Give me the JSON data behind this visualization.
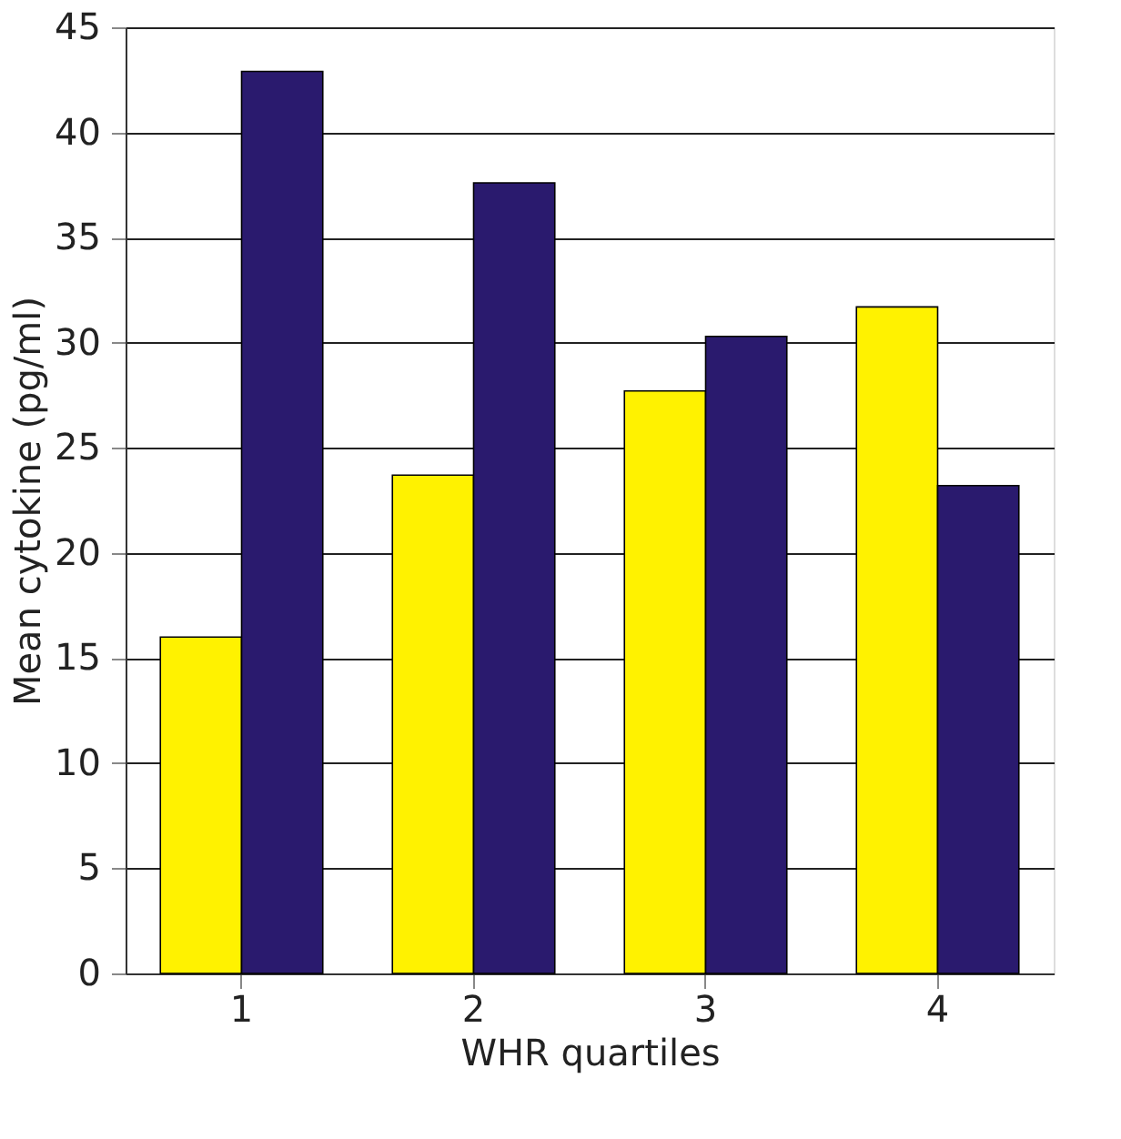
{
  "chart_data": {
    "type": "bar",
    "xlabel": "WHR quartiles",
    "ylabel": "Mean cytokine (pg/ml)",
    "categories": [
      "1",
      "2",
      "3",
      "4"
    ],
    "series": [
      {
        "color": "#fff200",
        "values": [
          16.0,
          23.7,
          27.7,
          31.7
        ]
      },
      {
        "color": "#2a1a6e",
        "values": [
          42.9,
          37.6,
          30.3,
          23.2
        ]
      }
    ],
    "ylim": [
      0,
      45
    ],
    "yticks": [
      0,
      5,
      10,
      15,
      20,
      25,
      30,
      35,
      40,
      45
    ],
    "grid": "y",
    "legend": false
  }
}
